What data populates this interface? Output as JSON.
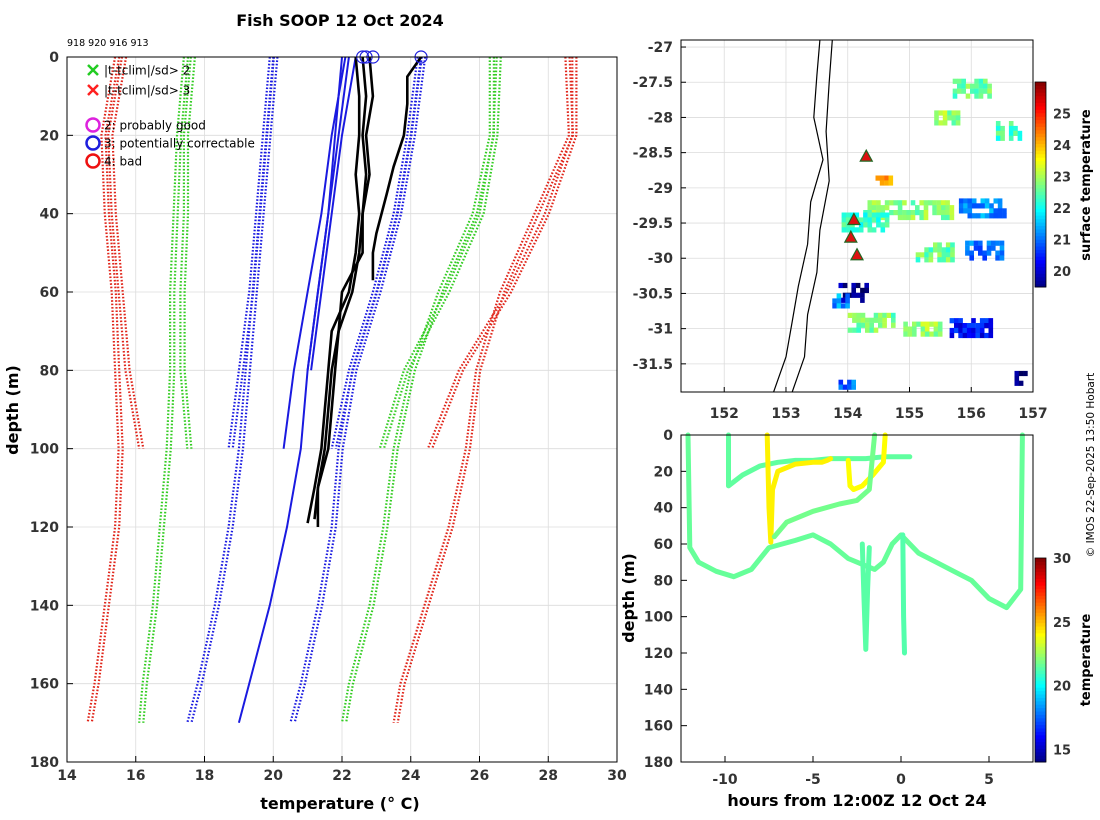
{
  "title": "Fish SOOP 12 Oct 2024",
  "profile_ids": "918 920 916 913",
  "credit": "© IMOS 22-Sep-2025 13:50 Hobart",
  "colors": {
    "flag2": "#22cc22",
    "flag3": "#ff2020",
    "probably_good": "#dd22dd",
    "correctable": "#1f1fdd",
    "bad": "#ee1111",
    "clim_red": "#e0251a",
    "clim_green": "#33cc22",
    "clim_blue": "#1a1ae0",
    "profile": "#000000"
  },
  "chart_data": [
    {
      "id": "profiles",
      "type": "line",
      "xlabel": "temperature (° C)",
      "ylabel": "depth (m)",
      "xlim": [
        14,
        30
      ],
      "ylim": [
        180,
        0
      ],
      "xticks": [
        14,
        16,
        18,
        20,
        22,
        24,
        26,
        28,
        30
      ],
      "yticks": [
        0,
        20,
        40,
        60,
        80,
        100,
        120,
        140,
        160,
        180
      ],
      "grid": true,
      "legend_position": "top-left",
      "legend": [
        {
          "marker": "x",
          "color": "flag2",
          "label": "|t-tclim|/sd> 2"
        },
        {
          "marker": "x",
          "color": "flag3",
          "label": "|t-tclim|/sd> 3"
        },
        {
          "marker": "o",
          "color": "probably_good",
          "label": "2: probably good"
        },
        {
          "marker": "o",
          "color": "correctable",
          "label": "3: potentially correctable"
        },
        {
          "marker": "o",
          "color": "bad",
          "label": "4: bad"
        }
      ],
      "climatology": [
        {
          "name": "clim-mean-minus-3sd-100m",
          "color": "clim_red",
          "depth": [
            0,
            20,
            40,
            60,
            80,
            100
          ],
          "temp": [
            15.6,
            15.2,
            15.3,
            15.5,
            15.7,
            16.1
          ]
        },
        {
          "name": "clim-mean-minus-3sd-170m",
          "color": "clim_red",
          "depth": [
            0,
            20,
            40,
            60,
            80,
            100,
            120,
            140,
            160,
            170
          ],
          "temp": [
            15.4,
            15.0,
            15.1,
            15.3,
            15.4,
            15.5,
            15.4,
            15.1,
            14.8,
            14.6
          ]
        },
        {
          "name": "clim-mean-minus-2sd-100m",
          "color": "clim_green",
          "depth": [
            0,
            20,
            40,
            60,
            80,
            100
          ],
          "temp": [
            17.6,
            17.4,
            17.4,
            17.3,
            17.3,
            17.5
          ]
        },
        {
          "name": "clim-mean-minus-2sd-170m",
          "color": "clim_green",
          "depth": [
            0,
            20,
            40,
            60,
            80,
            100,
            120,
            140,
            160,
            170
          ],
          "temp": [
            17.4,
            17.2,
            17.1,
            17.0,
            17.0,
            16.9,
            16.7,
            16.5,
            16.2,
            16.1
          ]
        },
        {
          "name": "clim-mean-100m",
          "color": "clim_blue",
          "depth": [
            0,
            20,
            40,
            60,
            80,
            100
          ],
          "temp": [
            19.9,
            19.7,
            19.5,
            19.3,
            19.0,
            18.7
          ]
        },
        {
          "name": "clim-mean-170m",
          "color": "clim_blue",
          "depth": [
            0,
            20,
            40,
            60,
            80,
            100,
            120,
            140,
            160,
            170
          ],
          "temp": [
            20.0,
            19.8,
            19.6,
            19.4,
            19.2,
            19.0,
            18.7,
            18.3,
            17.8,
            17.5
          ]
        },
        {
          "name": "clim-mean-plus-100m",
          "color": "clim_blue",
          "depth": [
            0,
            20,
            40,
            60,
            80,
            100
          ],
          "temp": [
            24.2,
            23.9,
            23.5,
            22.9,
            22.2,
            21.7
          ]
        },
        {
          "name": "clim-mean-plus-170m",
          "color": "clim_blue",
          "depth": [
            0,
            20,
            40,
            60,
            80,
            100,
            120,
            140,
            160,
            170
          ],
          "temp": [
            24.3,
            24.0,
            23.6,
            23.0,
            22.3,
            21.9,
            21.7,
            21.3,
            20.8,
            20.5
          ]
        },
        {
          "name": "clim-mean-plus-2sd-100m",
          "color": "clim_green",
          "depth": [
            0,
            20,
            40,
            60,
            80,
            100
          ],
          "temp": [
            26.5,
            26.4,
            26.0,
            25.0,
            23.8,
            23.1
          ]
        },
        {
          "name": "clim-mean-plus-2sd-170m",
          "color": "clim_green",
          "depth": [
            0,
            20,
            40,
            60,
            80,
            100,
            120,
            140,
            160,
            170
          ],
          "temp": [
            26.3,
            26.3,
            25.8,
            24.8,
            24.0,
            23.5,
            23.2,
            22.8,
            22.2,
            22.0
          ]
        },
        {
          "name": "clim-mean-plus-3sd-100m",
          "color": "clim_red",
          "depth": [
            0,
            20,
            40,
            60,
            80,
            100
          ],
          "temp": [
            28.7,
            28.7,
            27.9,
            26.8,
            25.4,
            24.5
          ]
        },
        {
          "name": "clim-mean-plus-3sd-170m",
          "color": "clim_red",
          "depth": [
            0,
            20,
            40,
            60,
            80,
            100,
            120,
            140,
            160,
            170
          ],
          "temp": [
            28.5,
            28.6,
            27.6,
            26.6,
            25.9,
            25.6,
            25.1,
            24.4,
            23.7,
            23.5
          ]
        }
      ],
      "model_profiles": [
        {
          "name": "model-profile-a",
          "color": "clim_blue",
          "depth": [
            0,
            20,
            40,
            60,
            80,
            100
          ],
          "temp": [
            22.1,
            21.7,
            21.4,
            21.0,
            20.6,
            20.3
          ]
        },
        {
          "name": "model-profile-b",
          "color": "clim_blue",
          "depth": [
            0,
            20,
            40,
            60,
            80,
            100,
            120,
            140,
            160,
            170
          ],
          "temp": [
            22.2,
            21.9,
            21.6,
            21.3,
            21.0,
            20.8,
            20.4,
            19.9,
            19.3,
            19.0
          ]
        },
        {
          "name": "model-profile-c",
          "color": "clim_blue",
          "depth": [
            0,
            20,
            40,
            60,
            80
          ],
          "temp": [
            22.4,
            22.0,
            21.7,
            21.4,
            21.1
          ]
        },
        {
          "name": "model-profile-d",
          "color": "clim_blue",
          "depth": [
            0,
            20,
            40,
            60,
            80
          ],
          "temp": [
            22.0,
            21.8,
            21.6,
            21.3,
            21.0
          ]
        }
      ],
      "observed_profiles": [
        {
          "name": "profile-918",
          "depth": [
            0,
            10,
            20,
            30,
            40,
            50,
            60,
            70,
            80,
            90,
            100,
            110,
            119
          ],
          "temp": [
            22.4,
            22.5,
            22.5,
            22.4,
            22.5,
            22.4,
            22.2,
            21.7,
            21.6,
            21.5,
            21.4,
            21.2,
            21.0
          ]
        },
        {
          "name": "profile-920",
          "depth": [
            0,
            10,
            20,
            30,
            40,
            50,
            60,
            70,
            80,
            90,
            100,
            110,
            118
          ],
          "temp": [
            22.6,
            22.7,
            22.6,
            22.7,
            22.6,
            22.6,
            22.0,
            21.9,
            21.8,
            21.7,
            21.6,
            21.3,
            21.2
          ]
        },
        {
          "name": "profile-916",
          "depth": [
            0,
            10,
            20,
            30,
            40,
            50,
            60,
            70,
            80,
            90,
            100,
            110,
            120
          ],
          "temp": [
            22.8,
            22.9,
            22.7,
            22.8,
            22.6,
            22.5,
            22.3,
            21.9,
            21.7,
            21.6,
            21.5,
            21.3,
            21.3
          ]
        },
        {
          "name": "profile-913",
          "depth": [
            0,
            5,
            12,
            20,
            28,
            35,
            45,
            50,
            57
          ],
          "temp": [
            24.3,
            23.9,
            23.9,
            23.8,
            23.5,
            23.3,
            23.0,
            22.9,
            22.9
          ]
        }
      ],
      "flag_markers": [
        {
          "flag": "correctable",
          "temp": 22.6,
          "depth": 0
        },
        {
          "flag": "correctable",
          "temp": 22.7,
          "depth": 0
        },
        {
          "flag": "correctable",
          "temp": 22.9,
          "depth": 0
        },
        {
          "flag": "correctable",
          "temp": 24.3,
          "depth": 0
        }
      ]
    },
    {
      "id": "sst-map",
      "type": "heatmap",
      "xlim": [
        151.3,
        157
      ],
      "ylim": [
        -31.9,
        -26.9
      ],
      "xticks": [
        152,
        153,
        154,
        155,
        156,
        157
      ],
      "yticks": [
        -27,
        -27.5,
        -28,
        -28.5,
        -29,
        -29.5,
        -30,
        -30.5,
        -31,
        -31.5
      ],
      "colorbar_label": "surface temperature",
      "colorbar_range": [
        19.5,
        26
      ],
      "colorbar_ticks": [
        20,
        21,
        22,
        23,
        24,
        25
      ],
      "stations": [
        {
          "lon": 154.3,
          "lat": -28.55
        },
        {
          "lon": 154.1,
          "lat": -29.45
        },
        {
          "lon": 154.05,
          "lat": -29.7
        },
        {
          "lon": 154.15,
          "lat": -29.95
        }
      ],
      "coast": [
        {
          "lon": 153.55,
          "lat": -26.9
        },
        {
          "lon": 153.5,
          "lat": -27.4
        },
        {
          "lon": 153.45,
          "lat": -28.0
        },
        {
          "lon": 153.6,
          "lat": -28.6
        },
        {
          "lon": 153.4,
          "lat": -29.2
        },
        {
          "lon": 153.35,
          "lat": -29.8
        },
        {
          "lon": 153.2,
          "lat": -30.4
        },
        {
          "lon": 153.1,
          "lat": -30.9
        },
        {
          "lon": 153.0,
          "lat": -31.4
        },
        {
          "lon": 152.8,
          "lat": -31.9
        }
      ],
      "contour_200m": [
        {
          "lon": 153.75,
          "lat": -26.9
        },
        {
          "lon": 153.7,
          "lat": -27.5
        },
        {
          "lon": 153.65,
          "lat": -28.2
        },
        {
          "lon": 153.7,
          "lat": -28.9
        },
        {
          "lon": 153.55,
          "lat": -29.6
        },
        {
          "lon": 153.5,
          "lat": -30.2
        },
        {
          "lon": 153.35,
          "lat": -30.8
        },
        {
          "lon": 153.3,
          "lat": -31.4
        },
        {
          "lon": 153.1,
          "lat": -31.9
        }
      ],
      "sst_patches": [
        {
          "lon": 156.0,
          "lat": -27.6,
          "w": 0.6,
          "h": 0.3,
          "temp": 22.6
        },
        {
          "lon": 155.6,
          "lat": -28.0,
          "w": 0.4,
          "h": 0.2,
          "temp": 22.9
        },
        {
          "lon": 156.6,
          "lat": -28.2,
          "w": 0.4,
          "h": 0.3,
          "temp": 22.4
        },
        {
          "lon": 154.6,
          "lat": -28.9,
          "w": 0.3,
          "h": 0.15,
          "temp": 24.3
        },
        {
          "lon": 155.0,
          "lat": -29.3,
          "w": 1.5,
          "h": 0.25,
          "temp": 22.8
        },
        {
          "lon": 156.2,
          "lat": -29.3,
          "w": 0.8,
          "h": 0.3,
          "temp": 21.2
        },
        {
          "lon": 154.3,
          "lat": -29.5,
          "w": 0.8,
          "h": 0.3,
          "temp": 22.3
        },
        {
          "lon": 155.4,
          "lat": -29.9,
          "w": 0.6,
          "h": 0.25,
          "temp": 22.6
        },
        {
          "lon": 156.2,
          "lat": -29.9,
          "w": 0.6,
          "h": 0.3,
          "temp": 21.0
        },
        {
          "lon": 154.1,
          "lat": -30.5,
          "w": 0.5,
          "h": 0.3,
          "temp": 19.6
        },
        {
          "lon": 153.9,
          "lat": -30.6,
          "w": 0.3,
          "h": 0.2,
          "temp": 21.3
        },
        {
          "lon": 154.4,
          "lat": -30.9,
          "w": 0.8,
          "h": 0.25,
          "temp": 22.7
        },
        {
          "lon": 155.2,
          "lat": -31.0,
          "w": 0.6,
          "h": 0.2,
          "temp": 22.9
        },
        {
          "lon": 156.0,
          "lat": -31.0,
          "w": 0.7,
          "h": 0.3,
          "temp": 20.4
        },
        {
          "lon": 154.0,
          "lat": -31.8,
          "w": 0.3,
          "h": 0.15,
          "temp": 21.0
        },
        {
          "lon": 156.8,
          "lat": -31.7,
          "w": 0.2,
          "h": 0.2,
          "temp": 19.7
        }
      ]
    },
    {
      "id": "time-depth",
      "type": "scatter",
      "xlabel": "hours from 12:00Z 12 Oct 24",
      "ylabel": "depth (m)",
      "xlim": [
        -12.5,
        7.5
      ],
      "ylim": [
        180,
        0
      ],
      "xticks": [
        -10,
        -5,
        0,
        5
      ],
      "yticks": [
        0,
        20,
        40,
        60,
        80,
        100,
        120,
        140,
        160,
        180
      ],
      "colorbar_label": "temperature",
      "colorbar_range": [
        14,
        30
      ],
      "colorbar_ticks": [
        15,
        20,
        25,
        30
      ],
      "tracks": [
        {
          "name": "track-long-deep",
          "temp": 21.6,
          "hours": [
            -12.1,
            -12.0,
            -11.5,
            -10.5,
            -9.5,
            -8.5,
            -7.5,
            -6.0,
            -5.0,
            -4.0,
            -3.0,
            -2.0,
            -1.5,
            -1.0,
            -0.5,
            0.0,
            1.0,
            2.0,
            3.0,
            4.0,
            5.0,
            6.0,
            6.8,
            6.9
          ],
          "depth": [
            0,
            62,
            70,
            75,
            78,
            74,
            62,
            58,
            55,
            60,
            68,
            72,
            74,
            70,
            60,
            55,
            65,
            70,
            75,
            80,
            90,
            95,
            85,
            0
          ]
        },
        {
          "name": "track-mid",
          "temp": 21.5,
          "hours": [
            -9.8,
            -9.8,
            -9.0,
            -8.0,
            -7.0,
            -6.0,
            -5.0,
            -4.0,
            -3.0,
            -2.0,
            -1.0,
            0.0,
            0.5
          ],
          "depth": [
            0,
            28,
            22,
            17,
            15,
            14,
            14,
            13,
            13,
            13,
            12,
            12,
            12
          ]
        },
        {
          "name": "track-warm-a",
          "temp": 24.2,
          "hours": [
            -7.6,
            -7.5,
            -7.4,
            -7.3,
            -7.0,
            -6.0,
            -5.0,
            -4.5,
            -4.2,
            -4.0
          ],
          "depth": [
            0,
            40,
            59,
            30,
            20,
            16,
            15,
            15,
            14,
            13
          ]
        },
        {
          "name": "track-warm-b",
          "temp": 24.0,
          "hours": [
            -3.0,
            -2.9,
            -2.7,
            -2.2,
            -1.6,
            -1.0,
            -0.9
          ],
          "depth": [
            14,
            28,
            30,
            28,
            22,
            15,
            0
          ]
        },
        {
          "name": "track-return",
          "temp": 21.8,
          "hours": [
            -7.2,
            -6.5,
            -5.0,
            -3.5,
            -2.5,
            -1.8,
            -1.5
          ],
          "depth": [
            56,
            48,
            42,
            38,
            36,
            30,
            0
          ]
        },
        {
          "name": "track-spike",
          "temp": 21.4,
          "hours": [
            -2.2,
            -2.1,
            -2.0,
            -1.9,
            -1.8
          ],
          "depth": [
            60,
            90,
            118,
            85,
            62
          ]
        },
        {
          "name": "track-spike-b",
          "temp": 21.3,
          "hours": [
            0.1,
            0.15,
            0.2
          ],
          "depth": [
            55,
            100,
            120
          ]
        }
      ]
    }
  ]
}
